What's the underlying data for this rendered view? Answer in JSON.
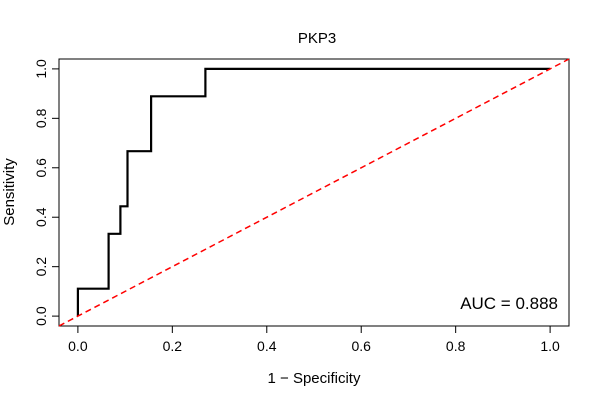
{
  "chart_data": {
    "type": "line",
    "title": "PKP3",
    "xlabel": "1 − Specificity",
    "ylabel": "Sensitivity",
    "xlim": [
      -0.04,
      1.04
    ],
    "ylim": [
      -0.04,
      1.04
    ],
    "xticks": [
      0.0,
      0.2,
      0.4,
      0.6,
      0.8,
      1.0
    ],
    "yticks": [
      0.0,
      0.2,
      0.4,
      0.6,
      0.8,
      1.0
    ],
    "xtick_labels": [
      "0.0",
      "0.2",
      "0.4",
      "0.6",
      "0.8",
      "1.0"
    ],
    "ytick_labels": [
      "0.0",
      "0.2",
      "0.4",
      "0.6",
      "0.8",
      "1.0"
    ],
    "grid": false,
    "series": [
      {
        "style": "solid",
        "color": "#000000",
        "x": [
          0.0,
          0.0,
          0.065,
          0.065,
          0.09,
          0.09,
          0.105,
          0.105,
          0.155,
          0.155,
          0.27,
          0.27,
          1.0
        ],
        "y": [
          0.0,
          0.111,
          0.111,
          0.333,
          0.333,
          0.444,
          0.444,
          0.667,
          0.667,
          0.889,
          0.889,
          1.0,
          1.0
        ]
      },
      {
        "style": "dashed",
        "color": "#ff0000",
        "x": [
          -0.04,
          1.04
        ],
        "y": [
          -0.04,
          1.04
        ]
      }
    ],
    "annotation": "AUC = 0.888"
  }
}
